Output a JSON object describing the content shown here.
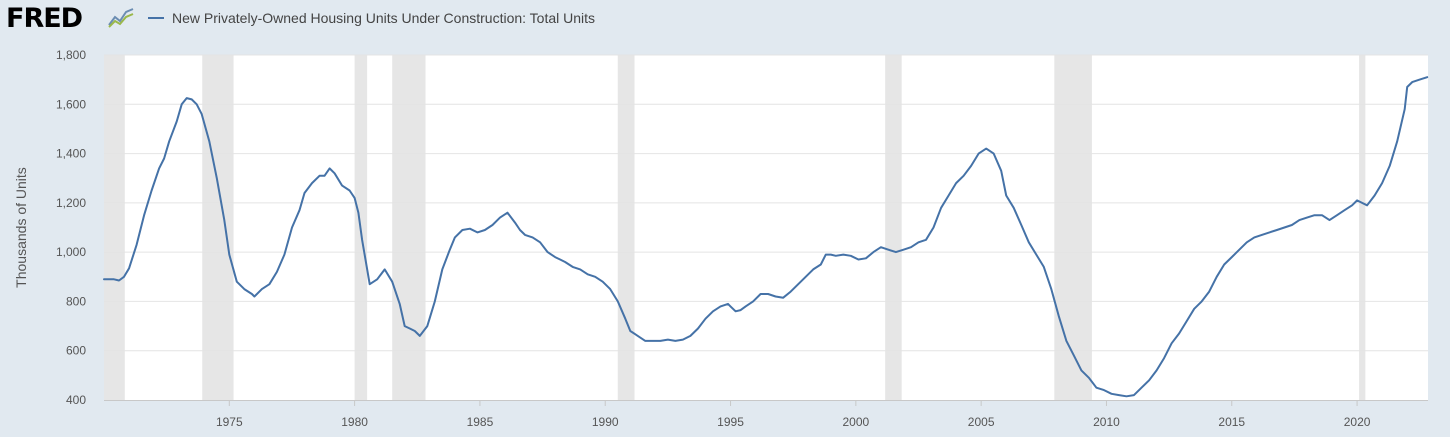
{
  "header": {
    "logo_text": "FRED",
    "logo_icon": "fred-line-chart-logo-icon",
    "legend_label": "New Privately-Owned Housing Units Under Construction: Total Units",
    "series_color": "#4572a7"
  },
  "chart_data": {
    "type": "line",
    "title": "",
    "xlabel": "",
    "ylabel": "Thousands of Units",
    "xlim": [
      1970.0,
      2022.83
    ],
    "ylim": [
      400,
      1800
    ],
    "y_ticks": [
      400,
      600,
      800,
      1000,
      1200,
      1400,
      1600,
      1800
    ],
    "y_tick_labels": [
      "400",
      "600",
      "800",
      "1,000",
      "1,200",
      "1,400",
      "1,600",
      "1,800"
    ],
    "x_ticks": [
      1975,
      1980,
      1985,
      1990,
      1995,
      2000,
      2005,
      2010,
      2015,
      2020
    ],
    "x_tick_labels": [
      "1975",
      "1980",
      "1985",
      "1990",
      "1995",
      "2000",
      "2005",
      "2010",
      "2015",
      "2020"
    ],
    "grid": true,
    "legend_position": "top-left",
    "recessions": [
      [
        1970.0,
        1970.83
      ],
      [
        1973.92,
        1975.17
      ],
      [
        1980.0,
        1980.5
      ],
      [
        1981.5,
        1982.83
      ],
      [
        1990.5,
        1991.17
      ],
      [
        2001.17,
        2001.83
      ],
      [
        2007.92,
        2009.42
      ],
      [
        2020.08,
        2020.33
      ]
    ],
    "series": [
      {
        "name": "New Privately-Owned Housing Units Under Construction: Total Units",
        "color": "#4572a7",
        "x": [
          1970.0,
          1970.4,
          1970.6,
          1970.8,
          1971.0,
          1971.3,
          1971.6,
          1971.9,
          1972.2,
          1972.4,
          1972.6,
          1972.9,
          1973.1,
          1973.3,
          1973.5,
          1973.7,
          1973.9,
          1974.2,
          1974.5,
          1974.8,
          1975.0,
          1975.3,
          1975.6,
          1975.9,
          1976.0,
          1976.3,
          1976.6,
          1976.9,
          1977.2,
          1977.5,
          1977.8,
          1978.0,
          1978.3,
          1978.6,
          1978.8,
          1979.0,
          1979.2,
          1979.5,
          1979.8,
          1980.0,
          1980.15,
          1980.3,
          1980.6,
          1980.9,
          1981.2,
          1981.5,
          1981.8,
          1982.0,
          1982.2,
          1982.4,
          1982.6,
          1982.9,
          1983.2,
          1983.5,
          1983.8,
          1984.0,
          1984.3,
          1984.6,
          1984.9,
          1985.2,
          1985.5,
          1985.8,
          1986.1,
          1986.4,
          1986.6,
          1986.8,
          1987.1,
          1987.4,
          1987.7,
          1988.0,
          1988.2,
          1988.4,
          1988.7,
          1989.0,
          1989.3,
          1989.6,
          1989.9,
          1990.2,
          1990.5,
          1990.8,
          1991.0,
          1991.3,
          1991.6,
          1991.9,
          1992.2,
          1992.5,
          1992.8,
          1993.1,
          1993.4,
          1993.7,
          1994.0,
          1994.3,
          1994.6,
          1994.9,
          1995.0,
          1995.2,
          1995.4,
          1995.6,
          1995.9,
          1996.2,
          1996.5,
          1996.8,
          1997.1,
          1997.4,
          1997.7,
          1998.0,
          1998.3,
          1998.6,
          1998.8,
          1999.0,
          1999.2,
          1999.5,
          1999.8,
          2000.1,
          2000.4,
          2000.7,
          2001.0,
          2001.3,
          2001.6,
          2001.9,
          2002.2,
          2002.5,
          2002.8,
          2003.1,
          2003.4,
          2003.7,
          2004.0,
          2004.3,
          2004.6,
          2004.9,
          2005.2,
          2005.5,
          2005.8,
          2006.0,
          2006.3,
          2006.6,
          2006.9,
          2007.2,
          2007.5,
          2007.8,
          2008.1,
          2008.4,
          2008.7,
          2009.0,
          2009.3,
          2009.6,
          2009.9,
          2010.2,
          2010.5,
          2010.8,
          2011.1,
          2011.4,
          2011.7,
          2012.0,
          2012.3,
          2012.6,
          2012.9,
          2013.2,
          2013.5,
          2013.8,
          2014.1,
          2014.4,
          2014.7,
          2015.0,
          2015.3,
          2015.6,
          2015.9,
          2016.2,
          2016.5,
          2016.8,
          2017.1,
          2017.4,
          2017.7,
          2018.0,
          2018.3,
          2018.6,
          2018.9,
          2019.2,
          2019.5,
          2019.8,
          2020.0,
          2020.2,
          2020.4,
          2020.7,
          2021.0,
          2021.3,
          2021.6,
          2021.9,
          2022.0,
          2022.2,
          2022.5,
          2022.8
        ],
        "values": [
          890,
          890,
          885,
          900,
          935,
          1030,
          1150,
          1250,
          1340,
          1380,
          1450,
          1530,
          1600,
          1625,
          1620,
          1600,
          1560,
          1450,
          1300,
          1130,
          990,
          880,
          850,
          830,
          820,
          850,
          870,
          920,
          990,
          1100,
          1170,
          1240,
          1280,
          1310,
          1310,
          1340,
          1320,
          1270,
          1250,
          1220,
          1160,
          1050,
          870,
          890,
          930,
          880,
          790,
          700,
          690,
          680,
          660,
          700,
          800,
          930,
          1010,
          1060,
          1090,
          1095,
          1080,
          1090,
          1110,
          1140,
          1160,
          1120,
          1090,
          1070,
          1060,
          1040,
          1000,
          980,
          970,
          960,
          940,
          930,
          910,
          900,
          880,
          850,
          800,
          730,
          680,
          660,
          640,
          640,
          640,
          645,
          640,
          645,
          660,
          690,
          730,
          760,
          780,
          790,
          780,
          760,
          765,
          780,
          800,
          830,
          830,
          820,
          815,
          840,
          870,
          900,
          930,
          950,
          990,
          990,
          985,
          990,
          985,
          970,
          975,
          1000,
          1020,
          1010,
          1000,
          1010,
          1020,
          1040,
          1050,
          1100,
          1180,
          1230,
          1280,
          1310,
          1350,
          1400,
          1420,
          1400,
          1330,
          1230,
          1180,
          1110,
          1040,
          990,
          940,
          850,
          740,
          640,
          580,
          520,
          490,
          450,
          440,
          425,
          420,
          415,
          420,
          450,
          480,
          520,
          570,
          630,
          670,
          720,
          770,
          800,
          840,
          900,
          950,
          980,
          1010,
          1040,
          1060,
          1070,
          1080,
          1090,
          1100,
          1110,
          1130,
          1140,
          1150,
          1150,
          1130,
          1150,
          1170,
          1190,
          1210,
          1200,
          1190,
          1230,
          1280,
          1350,
          1450,
          1580,
          1670,
          1690,
          1700,
          1710
        ]
      }
    ]
  }
}
